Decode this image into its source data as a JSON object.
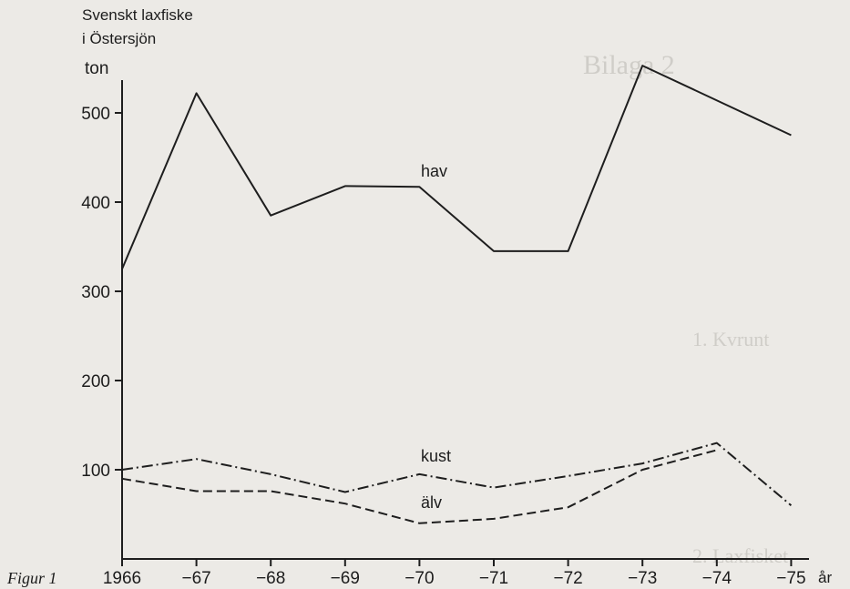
{
  "figure_caption": "Figur 1",
  "chart_data": {
    "type": "line",
    "title_line1": "Svenskt laxfiske",
    "title_line2": "i Östersjön",
    "ylabel": "ton",
    "xlabel": "år",
    "x": [
      "1966",
      "−67",
      "−68",
      "−69",
      "−70",
      "−71",
      "−72",
      "−73",
      "−74",
      "−75"
    ],
    "x_positions": [
      1966,
      1967,
      1968,
      1969,
      1970,
      1971,
      1972,
      1973,
      1974,
      1975
    ],
    "yticks": [
      100,
      200,
      300,
      400,
      500
    ],
    "ylim": [
      0,
      560
    ],
    "grid": false,
    "series": [
      {
        "name": "hav",
        "style": "solid",
        "points": [
          [
            1966,
            325
          ],
          [
            1967,
            522
          ],
          [
            1968,
            385
          ],
          [
            1969,
            418
          ],
          [
            1970,
            417
          ],
          [
            1971,
            345
          ],
          [
            1972,
            345
          ],
          [
            1973,
            553
          ],
          [
            1975,
            475
          ]
        ]
      },
      {
        "name": "kust",
        "style": "dashdot",
        "points": [
          [
            1966,
            100
          ],
          [
            1967,
            112
          ],
          [
            1968,
            95
          ],
          [
            1969,
            75
          ],
          [
            1970,
            95
          ],
          [
            1971,
            80
          ],
          [
            1972,
            93
          ],
          [
            1973,
            107
          ],
          [
            1974,
            130
          ],
          [
            1975,
            60
          ]
        ]
      },
      {
        "name": "älv",
        "style": "dashed",
        "points": [
          [
            1966,
            90
          ],
          [
            1967,
            76
          ],
          [
            1968,
            76
          ],
          [
            1969,
            62
          ],
          [
            1970,
            40
          ],
          [
            1971,
            45
          ],
          [
            1972,
            58
          ],
          [
            1973,
            100
          ],
          [
            1974,
            122
          ]
        ]
      }
    ]
  }
}
